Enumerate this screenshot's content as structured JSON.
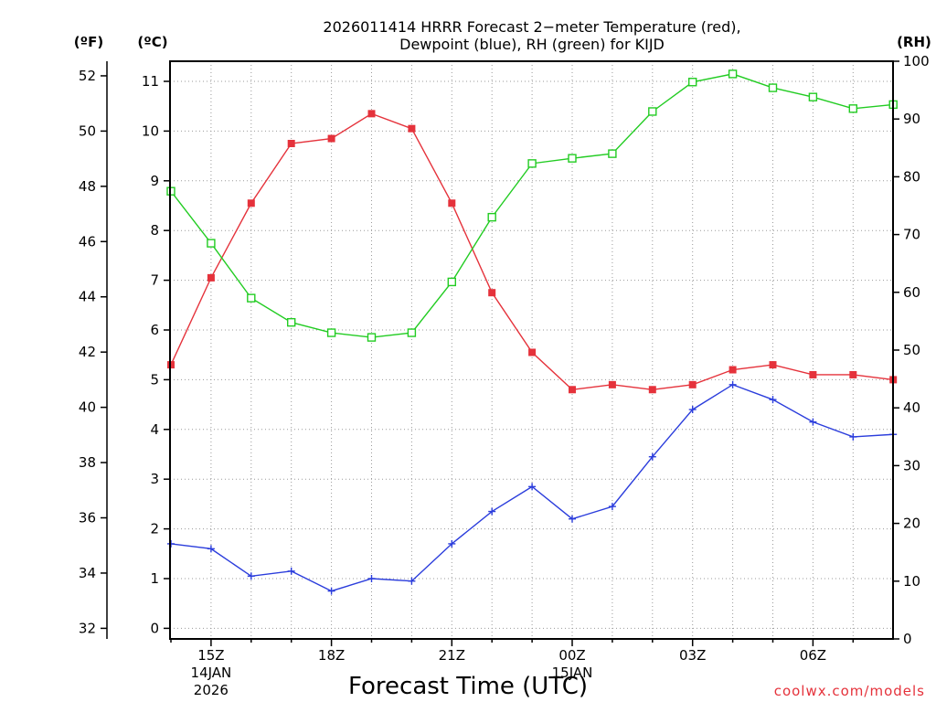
{
  "chart_data": {
    "type": "line",
    "title": [
      "2026011414 HRRR Forecast 2−meter Temperature (red),",
      "Dewpoint (blue), RH (green) for KIJD"
    ],
    "xlabel": "Forecast Time (UTC)",
    "credit": "coolwx.com/models",
    "x_ticks": [
      "15Z",
      "18Z",
      "21Z",
      "00Z",
      "03Z",
      "06Z"
    ],
    "x_date_labels": [
      {
        "tick": "15Z",
        "lines": [
          "14JAN",
          "2026"
        ]
      },
      {
        "tick": "00Z",
        "lines": [
          "15JAN"
        ]
      }
    ],
    "x_hours": [
      "14Z",
      "15Z",
      "16Z",
      "17Z",
      "18Z",
      "19Z",
      "20Z",
      "21Z",
      "22Z",
      "23Z",
      "00Z",
      "01Z",
      "02Z",
      "03Z",
      "04Z",
      "05Z",
      "06Z",
      "07Z",
      "08Z"
    ],
    "axes": {
      "fahrenheit": {
        "label": "(ºF)",
        "ticks": [
          32,
          34,
          36,
          38,
          40,
          42,
          44,
          46,
          48,
          50,
          52
        ]
      },
      "celsius": {
        "label": "(ºC)",
        "ticks": [
          0,
          1,
          2,
          3,
          4,
          5,
          6,
          7,
          8,
          9,
          10,
          11
        ],
        "range": [
          -0.3,
          11.3
        ]
      },
      "rh": {
        "label": "(RH)",
        "ticks": [
          0,
          10,
          20,
          30,
          40,
          50,
          60,
          70,
          80,
          90,
          100
        ],
        "range": [
          0,
          100
        ]
      }
    },
    "series": [
      {
        "name": "Temperature",
        "axis": "celsius",
        "color": "#e5323b",
        "marker": "filled-square",
        "values": [
          5.3,
          7.05,
          8.55,
          9.75,
          9.85,
          10.35,
          10.05,
          8.55,
          6.75,
          5.55,
          4.8,
          4.9,
          4.8,
          4.9,
          5.2,
          5.3,
          5.1,
          5.1,
          5.0
        ]
      },
      {
        "name": "Dewpoint",
        "axis": "celsius",
        "color": "#2b3ddc",
        "marker": "plus",
        "values": [
          1.7,
          1.6,
          1.05,
          1.15,
          0.75,
          1.0,
          0.95,
          1.7,
          2.35,
          2.85,
          2.2,
          2.45,
          3.45,
          4.4,
          4.9,
          4.6,
          4.15,
          3.85,
          3.9
        ]
      },
      {
        "name": "RH",
        "axis": "rh",
        "color": "#22cc22",
        "marker": "open-square",
        "values": [
          77.5,
          68.5,
          59.0,
          54.8,
          53.0,
          52.2,
          53.0,
          61.8,
          73.0,
          82.3,
          83.2,
          84.0,
          91.3,
          96.4,
          97.8,
          95.4,
          93.8,
          91.8,
          92.5
        ]
      }
    ]
  }
}
